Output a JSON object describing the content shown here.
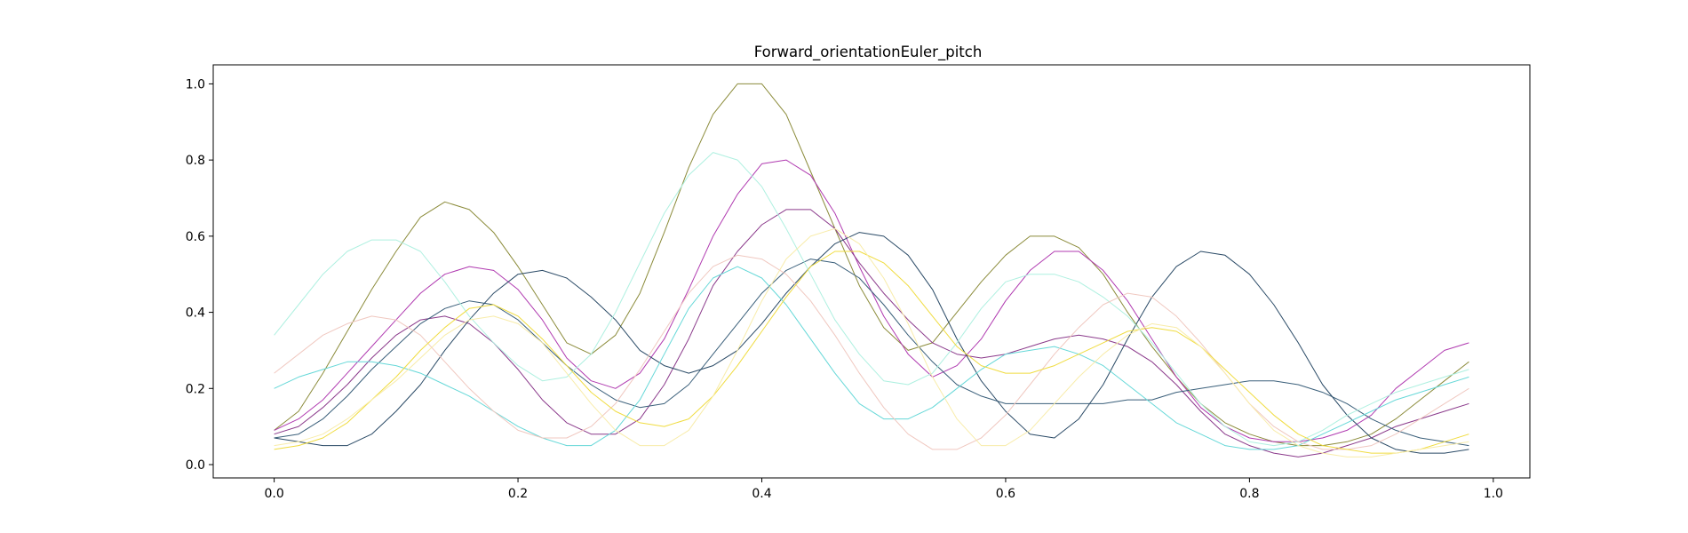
{
  "chart_data": {
    "type": "line",
    "title": "Forward_orientationEuler_pitch",
    "xlabel": "",
    "ylabel": "",
    "xlim": [
      -0.05,
      1.03
    ],
    "ylim": [
      -0.035,
      1.05
    ],
    "xticks": [
      0.0,
      0.2,
      0.4,
      0.6,
      0.8,
      1.0
    ],
    "xtick_labels": [
      "0.0",
      "0.2",
      "0.4",
      "0.6",
      "0.8",
      "1.0"
    ],
    "yticks": [
      0.0,
      0.2,
      0.4,
      0.6,
      0.8,
      1.0
    ],
    "ytick_labels": [
      "0.0",
      "0.2",
      "0.4",
      "0.6",
      "0.8",
      "1.0"
    ],
    "grid": false,
    "legend": "none",
    "x": [
      0.0,
      0.02,
      0.04,
      0.06,
      0.08,
      0.1,
      0.12,
      0.14,
      0.16,
      0.18,
      0.2,
      0.22,
      0.24,
      0.26,
      0.28,
      0.3,
      0.32,
      0.34,
      0.36,
      0.38,
      0.4,
      0.42,
      0.44,
      0.46,
      0.48,
      0.5,
      0.52,
      0.54,
      0.56,
      0.58,
      0.6,
      0.62,
      0.64,
      0.66,
      0.68,
      0.7,
      0.72,
      0.74,
      0.76,
      0.78,
      0.8,
      0.82,
      0.84,
      0.86,
      0.88,
      0.9,
      0.92,
      0.94,
      0.96,
      0.98
    ],
    "series": [
      {
        "color": "#8b8b3a",
        "values": [
          0.09,
          0.14,
          0.24,
          0.35,
          0.46,
          0.56,
          0.65,
          0.69,
          0.67,
          0.61,
          0.52,
          0.42,
          0.32,
          0.29,
          0.34,
          0.45,
          0.61,
          0.78,
          0.92,
          1.0,
          1.0,
          0.92,
          0.77,
          0.62,
          0.47,
          0.36,
          0.3,
          0.32,
          0.4,
          0.48,
          0.55,
          0.6,
          0.6,
          0.57,
          0.5,
          0.4,
          0.31,
          0.23,
          0.16,
          0.11,
          0.08,
          0.06,
          0.05,
          0.05,
          0.06,
          0.08,
          0.12,
          0.17,
          0.22,
          0.27
        ]
      },
      {
        "color": "#b03ab0",
        "values": [
          0.09,
          0.12,
          0.17,
          0.24,
          0.31,
          0.38,
          0.45,
          0.5,
          0.52,
          0.51,
          0.46,
          0.38,
          0.28,
          0.22,
          0.2,
          0.24,
          0.33,
          0.46,
          0.6,
          0.71,
          0.79,
          0.8,
          0.76,
          0.66,
          0.52,
          0.39,
          0.29,
          0.23,
          0.26,
          0.33,
          0.43,
          0.51,
          0.56,
          0.56,
          0.51,
          0.43,
          0.33,
          0.23,
          0.15,
          0.1,
          0.07,
          0.06,
          0.06,
          0.07,
          0.09,
          0.13,
          0.2,
          0.25,
          0.3,
          0.32
        ]
      },
      {
        "color": "#8b3a8b",
        "values": [
          0.08,
          0.1,
          0.15,
          0.21,
          0.28,
          0.34,
          0.38,
          0.39,
          0.37,
          0.32,
          0.25,
          0.17,
          0.11,
          0.08,
          0.08,
          0.12,
          0.21,
          0.33,
          0.47,
          0.56,
          0.63,
          0.67,
          0.67,
          0.62,
          0.53,
          0.45,
          0.38,
          0.32,
          0.29,
          0.28,
          0.29,
          0.31,
          0.33,
          0.34,
          0.33,
          0.31,
          0.27,
          0.21,
          0.14,
          0.08,
          0.05,
          0.03,
          0.02,
          0.03,
          0.05,
          0.07,
          0.1,
          0.12,
          0.14,
          0.16
        ]
      },
      {
        "color": "#3a5f7a",
        "values": [
          0.07,
          0.08,
          0.12,
          0.18,
          0.25,
          0.31,
          0.37,
          0.41,
          0.43,
          0.42,
          0.38,
          0.32,
          0.26,
          0.21,
          0.17,
          0.15,
          0.16,
          0.21,
          0.29,
          0.37,
          0.45,
          0.51,
          0.54,
          0.53,
          0.49,
          0.42,
          0.34,
          0.27,
          0.21,
          0.18,
          0.16,
          0.16,
          0.16,
          0.16,
          0.16,
          0.17,
          0.17,
          0.19,
          0.2,
          0.21,
          0.22,
          0.22,
          0.21,
          0.19,
          0.16,
          0.12,
          0.09,
          0.07,
          0.06,
          0.05
        ]
      },
      {
        "color": "#2a4a66",
        "values": [
          0.07,
          0.06,
          0.05,
          0.05,
          0.08,
          0.14,
          0.21,
          0.3,
          0.38,
          0.45,
          0.5,
          0.51,
          0.49,
          0.44,
          0.38,
          0.3,
          0.26,
          0.24,
          0.26,
          0.3,
          0.37,
          0.45,
          0.52,
          0.58,
          0.61,
          0.6,
          0.55,
          0.46,
          0.33,
          0.22,
          0.14,
          0.08,
          0.07,
          0.12,
          0.21,
          0.33,
          0.44,
          0.52,
          0.56,
          0.55,
          0.5,
          0.42,
          0.32,
          0.21,
          0.13,
          0.07,
          0.04,
          0.03,
          0.03,
          0.04
        ]
      },
      {
        "color": "#aef0e0",
        "values": [
          0.34,
          0.42,
          0.5,
          0.56,
          0.59,
          0.59,
          0.56,
          0.48,
          0.39,
          0.32,
          0.26,
          0.22,
          0.23,
          0.29,
          0.4,
          0.53,
          0.66,
          0.76,
          0.82,
          0.8,
          0.73,
          0.62,
          0.5,
          0.38,
          0.29,
          0.22,
          0.21,
          0.24,
          0.32,
          0.41,
          0.48,
          0.5,
          0.5,
          0.48,
          0.44,
          0.39,
          0.32,
          0.24,
          0.16,
          0.1,
          0.06,
          0.05,
          0.06,
          0.09,
          0.13,
          0.16,
          0.19,
          0.21,
          0.23,
          0.25
        ]
      },
      {
        "color": "#66d8d8",
        "values": [
          0.2,
          0.23,
          0.25,
          0.27,
          0.27,
          0.26,
          0.24,
          0.21,
          0.18,
          0.14,
          0.1,
          0.07,
          0.05,
          0.05,
          0.09,
          0.17,
          0.29,
          0.41,
          0.49,
          0.52,
          0.49,
          0.42,
          0.33,
          0.24,
          0.16,
          0.12,
          0.12,
          0.15,
          0.2,
          0.25,
          0.29,
          0.3,
          0.31,
          0.29,
          0.26,
          0.21,
          0.16,
          0.11,
          0.08,
          0.05,
          0.04,
          0.04,
          0.05,
          0.08,
          0.11,
          0.14,
          0.17,
          0.19,
          0.21,
          0.23
        ]
      },
      {
        "color": "#f0c8c0",
        "values": [
          0.24,
          0.29,
          0.34,
          0.37,
          0.39,
          0.38,
          0.34,
          0.27,
          0.2,
          0.14,
          0.09,
          0.07,
          0.07,
          0.1,
          0.16,
          0.25,
          0.35,
          0.45,
          0.52,
          0.55,
          0.54,
          0.5,
          0.43,
          0.34,
          0.24,
          0.15,
          0.08,
          0.04,
          0.04,
          0.07,
          0.13,
          0.21,
          0.29,
          0.36,
          0.42,
          0.45,
          0.44,
          0.39,
          0.32,
          0.24,
          0.16,
          0.1,
          0.06,
          0.04,
          0.04,
          0.05,
          0.08,
          0.12,
          0.16,
          0.2
        ]
      },
      {
        "color": "#f0dc40",
        "values": [
          0.04,
          0.05,
          0.07,
          0.11,
          0.17,
          0.23,
          0.3,
          0.36,
          0.41,
          0.42,
          0.39,
          0.33,
          0.26,
          0.19,
          0.14,
          0.11,
          0.1,
          0.12,
          0.18,
          0.26,
          0.35,
          0.44,
          0.52,
          0.56,
          0.56,
          0.53,
          0.47,
          0.39,
          0.31,
          0.26,
          0.24,
          0.24,
          0.26,
          0.29,
          0.32,
          0.35,
          0.36,
          0.35,
          0.31,
          0.25,
          0.19,
          0.13,
          0.08,
          0.05,
          0.04,
          0.03,
          0.03,
          0.04,
          0.06,
          0.08
        ]
      },
      {
        "color": "#f8ecaa",
        "values": [
          0.05,
          0.06,
          0.08,
          0.12,
          0.17,
          0.22,
          0.28,
          0.34,
          0.38,
          0.39,
          0.37,
          0.32,
          0.24,
          0.16,
          0.09,
          0.05,
          0.05,
          0.09,
          0.18,
          0.3,
          0.43,
          0.54,
          0.6,
          0.62,
          0.58,
          0.49,
          0.37,
          0.23,
          0.12,
          0.05,
          0.05,
          0.09,
          0.16,
          0.23,
          0.29,
          0.34,
          0.37,
          0.36,
          0.31,
          0.24,
          0.16,
          0.09,
          0.05,
          0.03,
          0.02,
          0.02,
          0.03,
          0.04,
          0.05,
          0.06
        ]
      }
    ]
  }
}
